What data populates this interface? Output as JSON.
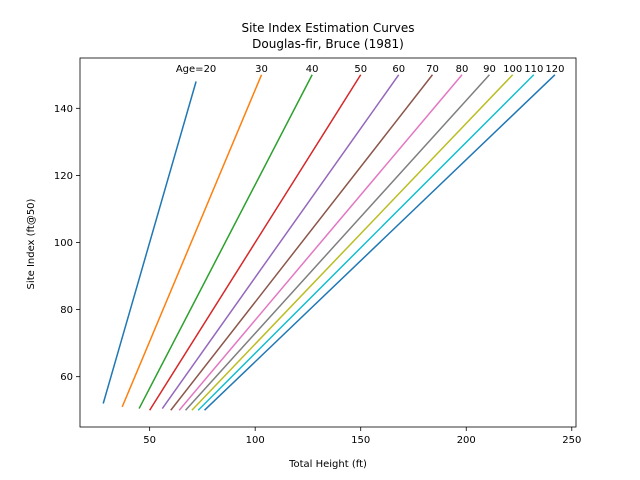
{
  "chart_data": {
    "type": "line",
    "title": "Site Index Estimation Curves",
    "subtitle": "Douglas-fir, Bruce (1981)",
    "xlabel": "Total Height (ft)",
    "ylabel": "Site Index (ft@50)",
    "xlim": [
      17,
      252
    ],
    "ylim": [
      45,
      155
    ],
    "xticks": [
      50,
      100,
      150,
      200,
      250
    ],
    "yticks": [
      60,
      80,
      100,
      120,
      140
    ],
    "grid": false,
    "series": [
      {
        "name": "Age=20",
        "color": "#1f77b4",
        "x": [
          28,
          72
        ],
        "y": [
          52,
          148
        ]
      },
      {
        "name": "30",
        "color": "#ff7f0e",
        "x": [
          37,
          103
        ],
        "y": [
          51,
          150
        ]
      },
      {
        "name": "40",
        "color": "#2ca02c",
        "x": [
          45,
          127
        ],
        "y": [
          50.5,
          150
        ]
      },
      {
        "name": "50",
        "color": "#d62728",
        "x": [
          50,
          150
        ],
        "y": [
          50,
          150
        ]
      },
      {
        "name": "60",
        "color": "#9467bd",
        "x": [
          56,
          168
        ],
        "y": [
          50.5,
          150
        ]
      },
      {
        "name": "70",
        "color": "#8c564b",
        "x": [
          60,
          184
        ],
        "y": [
          50,
          150
        ]
      },
      {
        "name": "80",
        "color": "#e377c2",
        "x": [
          64,
          198
        ],
        "y": [
          50,
          150
        ]
      },
      {
        "name": "90",
        "color": "#7f7f7f",
        "x": [
          67,
          211
        ],
        "y": [
          50,
          150
        ]
      },
      {
        "name": "100",
        "color": "#bcbd22",
        "x": [
          70,
          222
        ],
        "y": [
          50,
          150
        ]
      },
      {
        "name": "110",
        "color": "#17becf",
        "x": [
          73,
          232
        ],
        "y": [
          50,
          150
        ]
      },
      {
        "name": "120",
        "color": "#1f77b4",
        "x": [
          76,
          242
        ],
        "y": [
          50,
          150
        ]
      }
    ]
  }
}
